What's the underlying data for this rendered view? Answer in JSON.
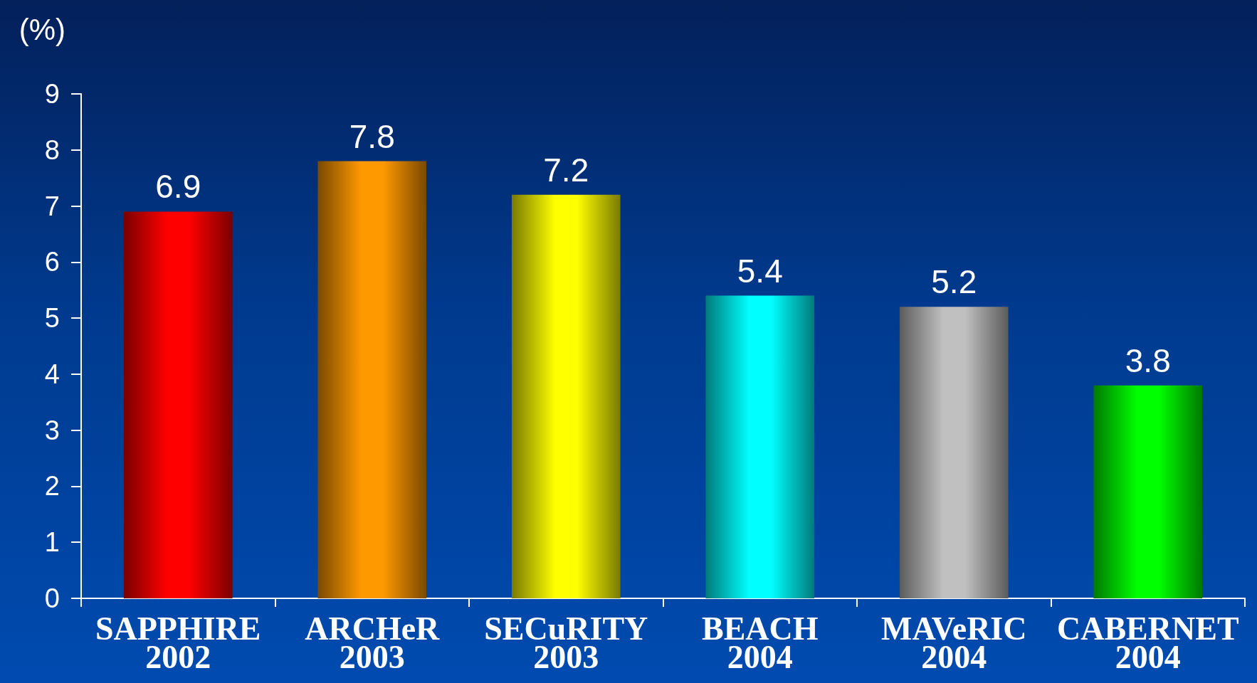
{
  "chart_data": {
    "type": "bar",
    "ylabel": "(%)",
    "categories": [
      "SAPPHIRE\n2002",
      "ARCHeR\n2003",
      "SECuRITY\n2003",
      "BEACH\n2004",
      "MAVeRIC\n2004",
      "CABERNET\n2004"
    ],
    "values": [
      6.9,
      7.8,
      7.2,
      5.4,
      5.2,
      3.8
    ],
    "colors": [
      "#ff0000",
      "#ff9900",
      "#ffff00",
      "#00ffff",
      "#c0c0c0",
      "#00ff00"
    ],
    "ylim": [
      0,
      9
    ],
    "yticks": [
      0,
      1,
      2,
      3,
      4,
      5,
      6,
      7,
      8,
      9
    ],
    "grid": false,
    "data_labels": true
  }
}
